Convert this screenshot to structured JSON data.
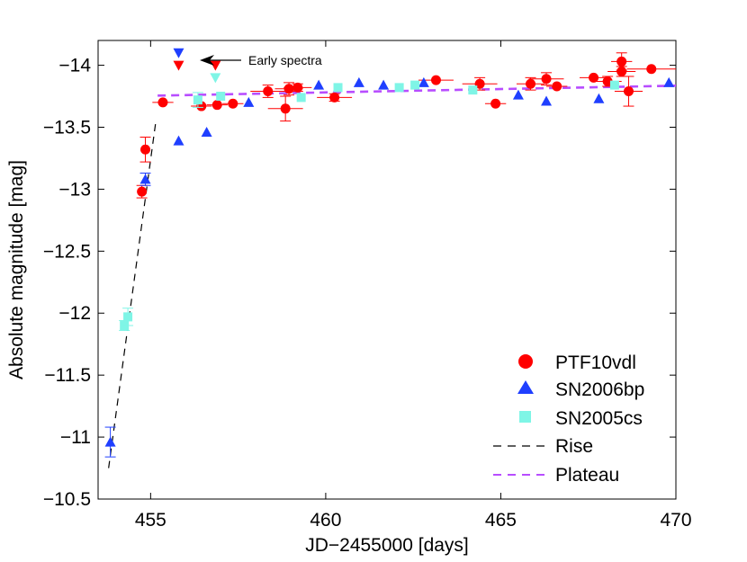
{
  "chart_data": {
    "type": "scatter",
    "title": "",
    "xlabel": "JD−2455000 [days]",
    "ylabel": "Absolute magnitude [mag]",
    "xlim": [
      453.5,
      470
    ],
    "ylim": [
      -10.5,
      -14.2
    ],
    "y_inverted": true,
    "x_ticks": [
      455,
      460,
      465,
      470
    ],
    "x_tick_labels": [
      "455",
      "460",
      "465",
      "470"
    ],
    "y_ticks": [
      -14,
      -13.5,
      -13,
      -12.5,
      -12,
      -11.5,
      -11,
      -10.5
    ],
    "y_tick_labels": [
      "−14",
      "−13.5",
      "−13",
      "−12.5",
      "−12",
      "−11.5",
      "−11",
      "−10.5"
    ],
    "grid": false,
    "legend_position": "bottom-right",
    "annotation": {
      "text": "Early spectra",
      "x": 456.5,
      "y": -14.02
    },
    "series": [
      {
        "name": "PTF10vdl",
        "marker": "circle",
        "color": "#ff0000",
        "points": [
          {
            "x": 454.75,
            "y": -12.98,
            "err": 0.05,
            "xerr": 0
          },
          {
            "x": 454.85,
            "y": -13.32,
            "err": 0.1,
            "xerr": 0
          },
          {
            "x": 455.35,
            "y": -13.7,
            "err": 0,
            "xerr": 0.3
          },
          {
            "x": 456.45,
            "y": -13.67,
            "err": 0,
            "xerr": 0.3
          },
          {
            "x": 456.9,
            "y": -13.68,
            "err": 0,
            "xerr": 0.3
          },
          {
            "x": 457.35,
            "y": -13.69,
            "err": 0,
            "xerr": 0.3
          },
          {
            "x": 458.35,
            "y": -13.79,
            "err": 0.05,
            "xerr": 0.5
          },
          {
            "x": 458.85,
            "y": -13.65,
            "err": 0.1,
            "xerr": 0.5
          },
          {
            "x": 458.95,
            "y": -13.81,
            "err": 0.05,
            "xerr": 0.4
          },
          {
            "x": 459.2,
            "y": -13.82,
            "err": 0.03,
            "xerr": 0.4
          },
          {
            "x": 460.25,
            "y": -13.74,
            "err": 0.03,
            "xerr": 0.5
          },
          {
            "x": 463.15,
            "y": -13.88,
            "err": 0,
            "xerr": 0.5
          },
          {
            "x": 464.4,
            "y": -13.85,
            "err": 0.05,
            "xerr": 0.5
          },
          {
            "x": 464.85,
            "y": -13.69,
            "err": 0,
            "xerr": 0.3
          },
          {
            "x": 465.85,
            "y": -13.85,
            "err": 0.05,
            "xerr": 0.4
          },
          {
            "x": 466.3,
            "y": -13.89,
            "err": 0.05,
            "xerr": 0.5
          },
          {
            "x": 466.6,
            "y": -13.83,
            "err": 0,
            "xerr": 0.3
          },
          {
            "x": 467.65,
            "y": -13.9,
            "err": 0,
            "xerr": 0.4
          },
          {
            "x": 468.05,
            "y": -13.87,
            "err": 0.04,
            "xerr": 0.4
          },
          {
            "x": 468.45,
            "y": -14.03,
            "err": 0.07,
            "xerr": 0.3
          },
          {
            "x": 468.45,
            "y": -13.95,
            "err": 0.04,
            "xerr": 0.4
          },
          {
            "x": 468.65,
            "y": -13.79,
            "err": 0.12,
            "xerr": 0.4
          },
          {
            "x": 469.3,
            "y": -13.97,
            "err": 0,
            "xerr": 0.7
          }
        ]
      },
      {
        "name": "SN2006bp",
        "marker": "triangle",
        "color": "#1f3fff",
        "points": [
          {
            "x": 453.85,
            "y": -10.96,
            "err": 0.12,
            "xerr": 0
          },
          {
            "x": 454.85,
            "y": -13.08,
            "err": 0.05,
            "xerr": 0
          },
          {
            "x": 455.8,
            "y": -13.39,
            "err": 0,
            "xerr": 0
          },
          {
            "x": 456.6,
            "y": -13.46,
            "err": 0,
            "xerr": 0
          },
          {
            "x": 457.8,
            "y": -13.7,
            "err": 0,
            "xerr": 0
          },
          {
            "x": 459.8,
            "y": -13.84,
            "err": 0,
            "xerr": 0
          },
          {
            "x": 460.95,
            "y": -13.86,
            "err": 0,
            "xerr": 0
          },
          {
            "x": 461.65,
            "y": -13.84,
            "err": 0,
            "xerr": 0
          },
          {
            "x": 462.8,
            "y": -13.86,
            "err": 0,
            "xerr": 0
          },
          {
            "x": 465.5,
            "y": -13.76,
            "err": 0,
            "xerr": 0
          },
          {
            "x": 466.3,
            "y": -13.71,
            "err": 0,
            "xerr": 0
          },
          {
            "x": 467.8,
            "y": -13.73,
            "err": 0,
            "xerr": 0
          },
          {
            "x": 469.8,
            "y": -13.86,
            "err": 0,
            "xerr": 0
          }
        ]
      },
      {
        "name": "SN2005cs",
        "marker": "square",
        "color": "#7ff5e6",
        "points": [
          {
            "x": 454.25,
            "y": -11.9,
            "err": 0.04,
            "xerr": 0
          },
          {
            "x": 454.35,
            "y": -11.97,
            "err": 0.07,
            "xerr": 0
          },
          {
            "x": 456.35,
            "y": -13.72,
            "err": 0.06,
            "xerr": 0
          },
          {
            "x": 457.0,
            "y": -13.75,
            "err": 0,
            "xerr": 0
          },
          {
            "x": 459.3,
            "y": -13.74,
            "err": 0,
            "xerr": 0
          },
          {
            "x": 460.35,
            "y": -13.82,
            "err": 0,
            "xerr": 0
          },
          {
            "x": 462.1,
            "y": -13.82,
            "err": 0,
            "xerr": 0
          },
          {
            "x": 462.55,
            "y": -13.84,
            "err": 0,
            "xerr": 0
          },
          {
            "x": 464.2,
            "y": -13.8,
            "err": 0,
            "xerr": 0
          },
          {
            "x": 468.25,
            "y": -13.84,
            "err": 0,
            "xerr": 0
          }
        ]
      },
      {
        "name": "Rise",
        "type": "line",
        "dash": true,
        "color": "#000000",
        "x": [
          453.8,
          455.15
        ],
        "y": [
          -10.75,
          -13.55
        ]
      },
      {
        "name": "Plateau",
        "type": "line",
        "dash": true,
        "color": "#b84dff",
        "x": [
          455.2,
          470.0
        ],
        "y": [
          -13.755,
          -13.835
        ]
      }
    ],
    "upper_limits": [
      {
        "x": 455.8,
        "y": -14.1,
        "color": "#1f3fff"
      },
      {
        "x": 455.8,
        "y": -14.0,
        "color": "#ff0000"
      },
      {
        "x": 456.85,
        "y": -14.0,
        "color": "#ff0000"
      },
      {
        "x": 456.85,
        "y": -13.9,
        "color": "#7ff5e6"
      }
    ]
  }
}
